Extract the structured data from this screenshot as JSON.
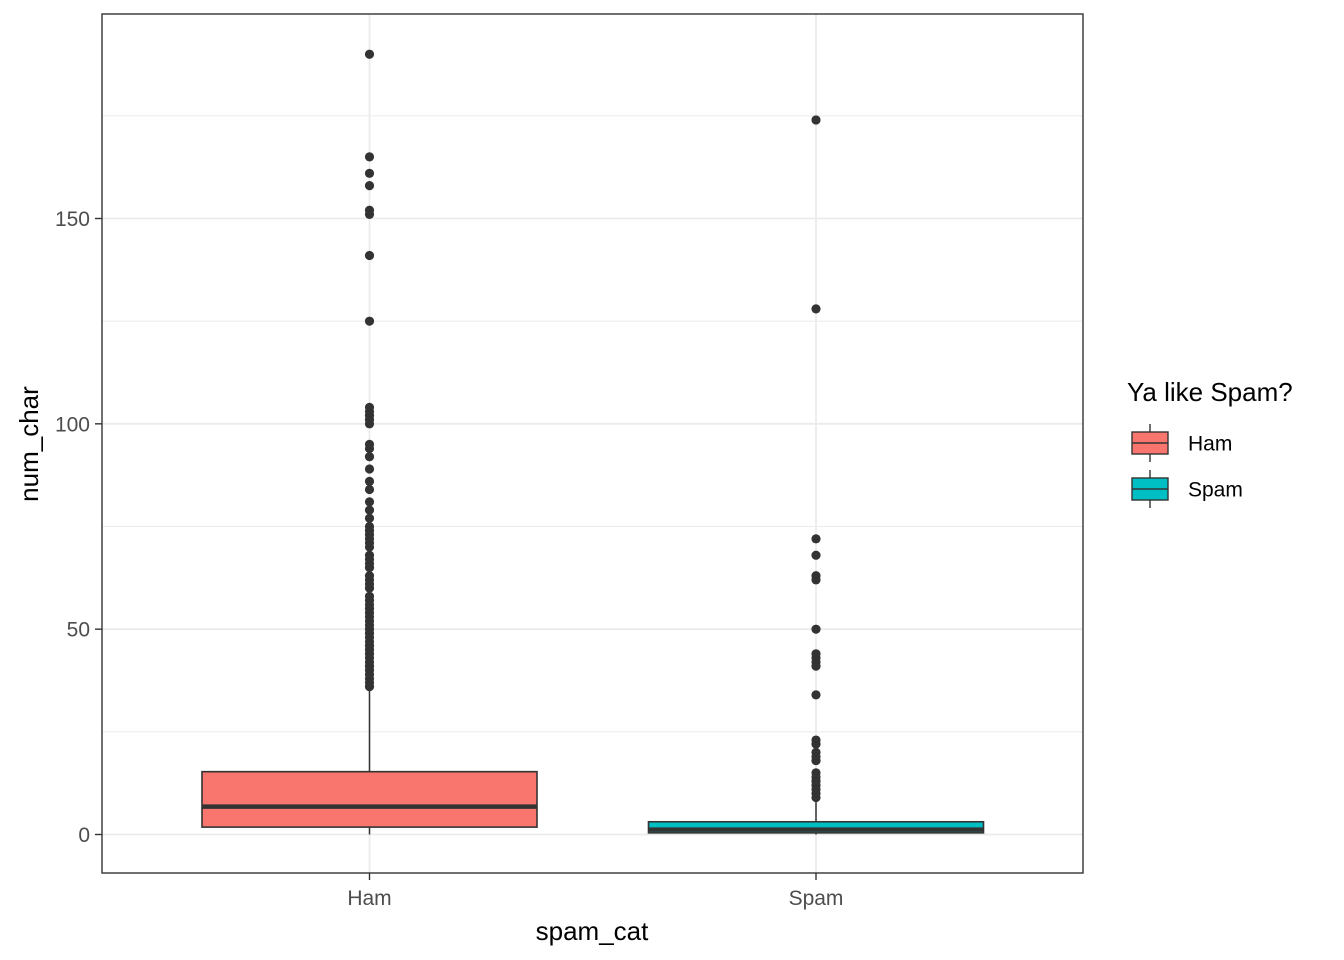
{
  "chart_data": {
    "type": "boxplot",
    "xlabel": "spam_cat",
    "ylabel": "num_char",
    "categories": [
      "Ham",
      "Spam"
    ],
    "ylim": [
      -9.5,
      199.5
    ],
    "yticks": [
      0,
      50,
      100,
      150
    ],
    "grid": true,
    "legend": {
      "title": "Ya like Spam?",
      "position": "right",
      "entries": [
        {
          "label": "Ham",
          "color": "#F8766D"
        },
        {
          "label": "Spam",
          "color": "#00BFC4"
        }
      ]
    },
    "series": [
      {
        "category": "Ham",
        "color": "#F8766D",
        "min": 0,
        "q1": 1.8,
        "median": 6.8,
        "q3": 15.3,
        "whisker_high": 35.5,
        "outliers": [
          36,
          37,
          38,
          39,
          40,
          41,
          42,
          43,
          44,
          45,
          46,
          47,
          48,
          49,
          50,
          51,
          52,
          53,
          54,
          55,
          56,
          57,
          58,
          60,
          61,
          62,
          63,
          65,
          66,
          67,
          68,
          70,
          71,
          72,
          73,
          74,
          75,
          77,
          79,
          81,
          84,
          86,
          89,
          92,
          94,
          95,
          100,
          101,
          102,
          103,
          104,
          125,
          141,
          151,
          152,
          158,
          161,
          165,
          190
        ]
      },
      {
        "category": "Spam",
        "color": "#00BFC4",
        "min": 0,
        "q1": 0.4,
        "median": 1.2,
        "q3": 3.1,
        "whisker_high": 8.8,
        "outliers": [
          9,
          10,
          11,
          12,
          13,
          14,
          15,
          18,
          19,
          20,
          22,
          23,
          34,
          41,
          42,
          43,
          44,
          50,
          62,
          63,
          68,
          72,
          128,
          174
        ]
      }
    ]
  }
}
